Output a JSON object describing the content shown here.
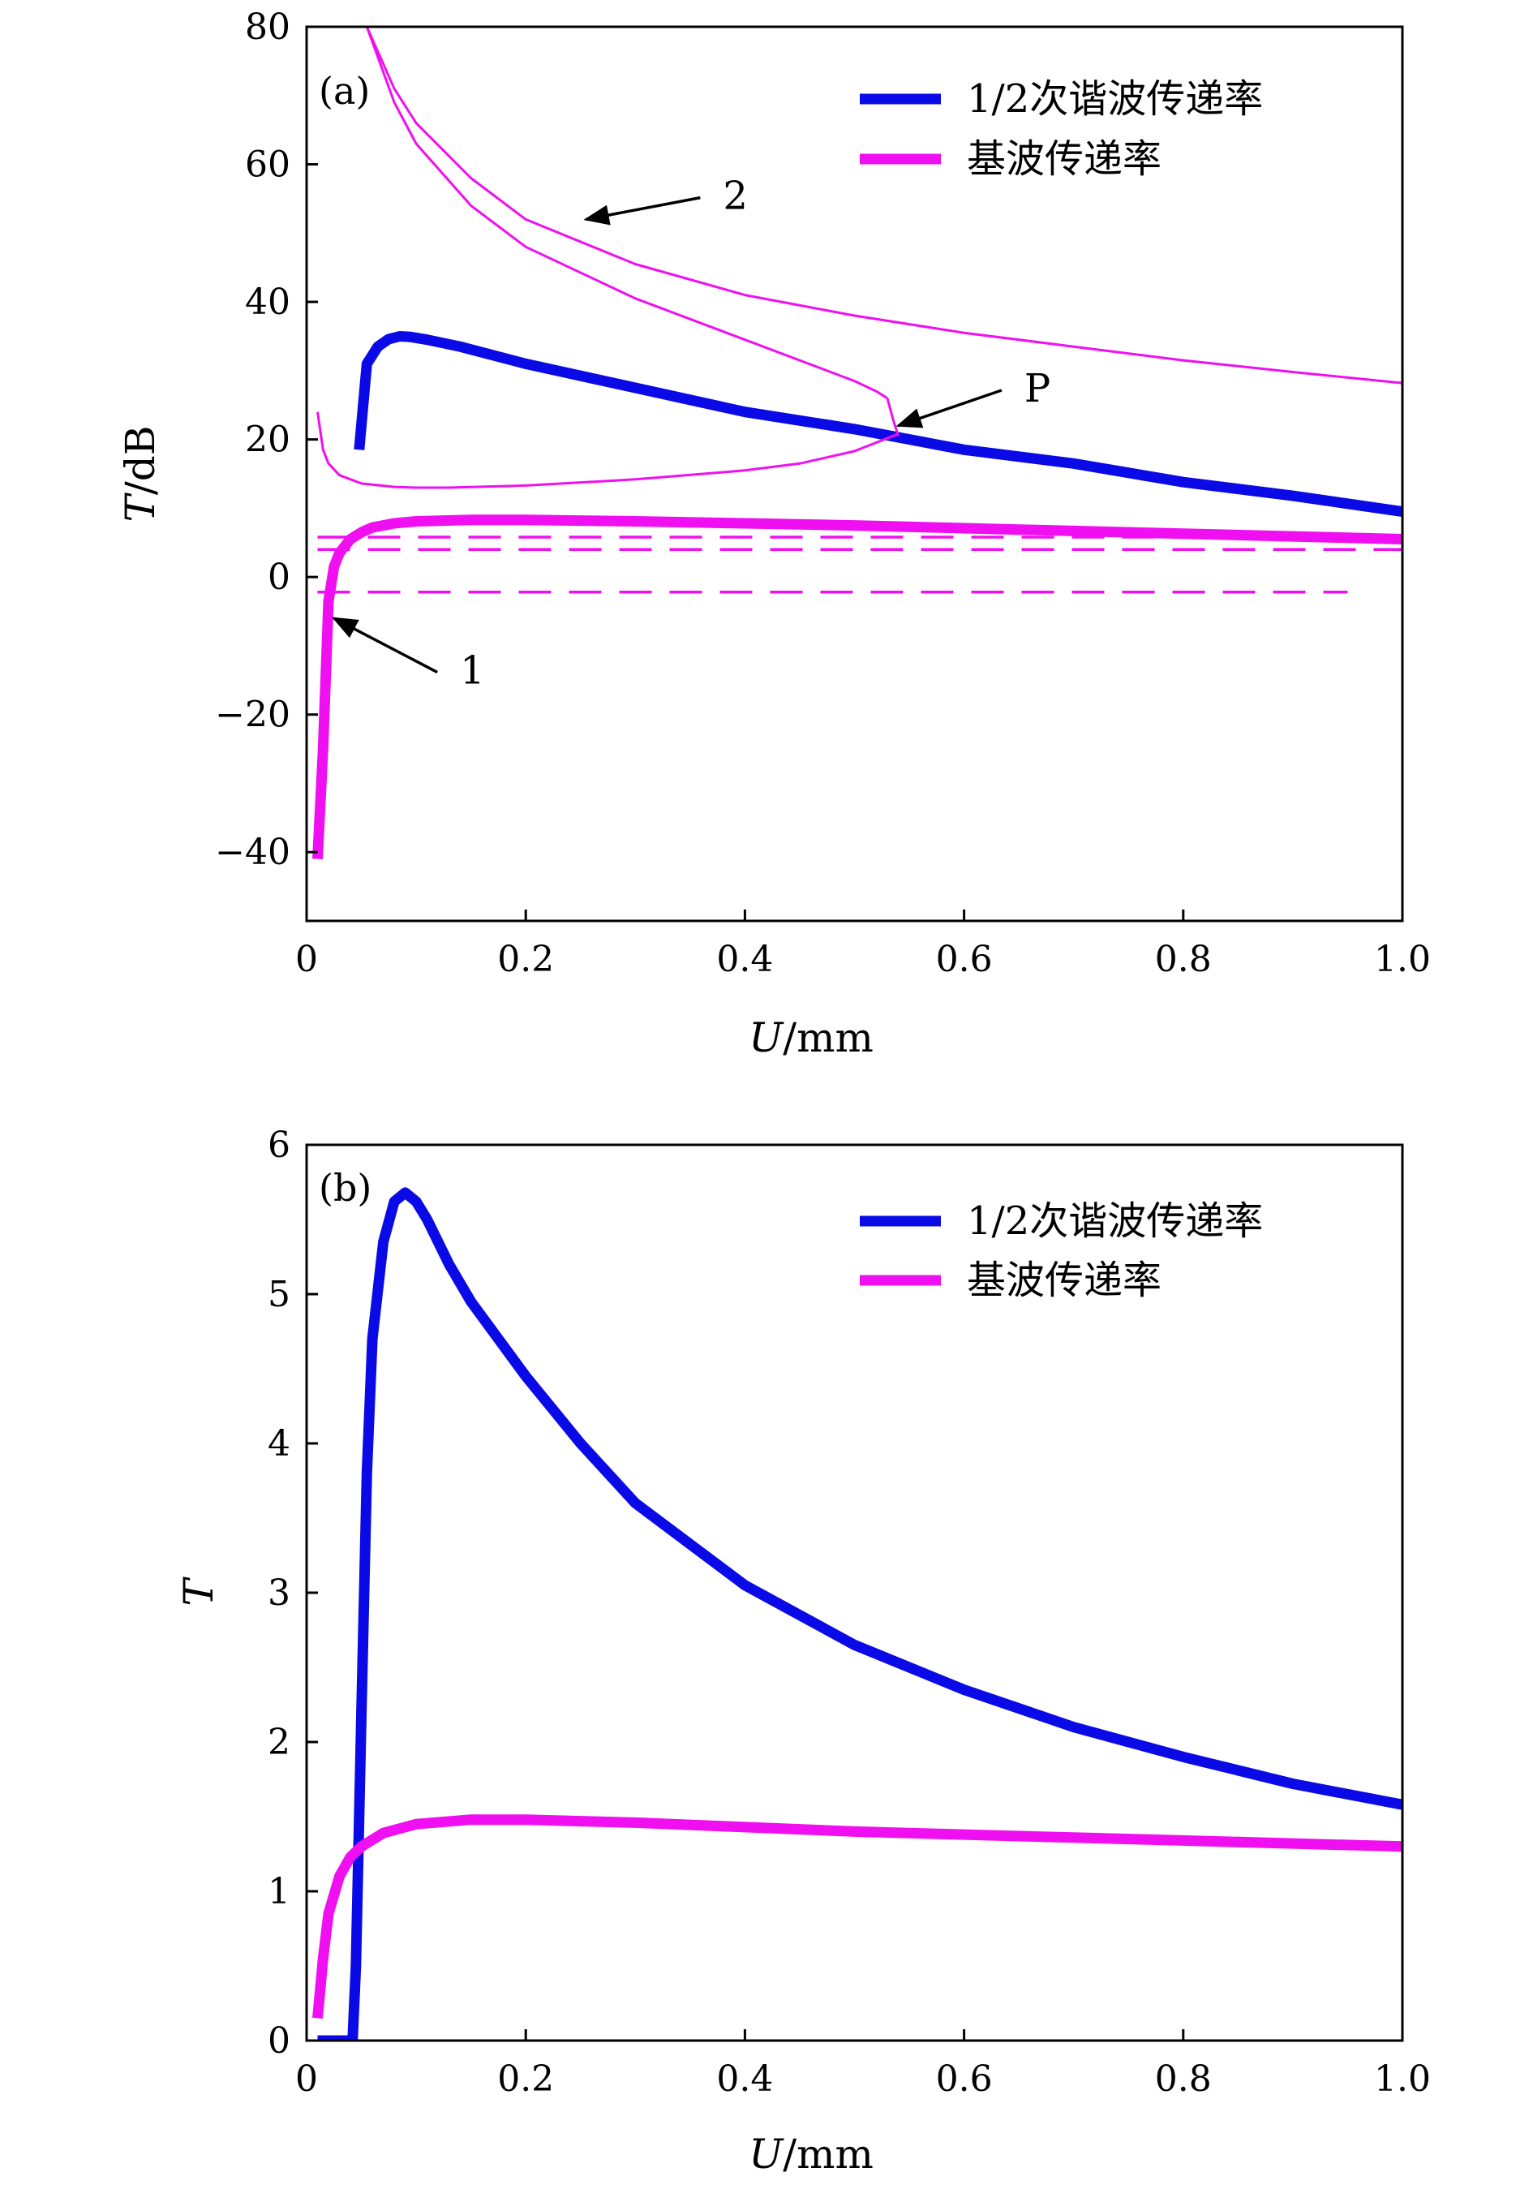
{
  "chart_data": [
    {
      "type": "line",
      "panel_label": "(a)",
      "ylabel_italic": "T",
      "ylabel_unit": "/dB",
      "xlabel_italic": "U",
      "xlabel_unit": "/mm",
      "xlim": [
        0,
        1.0
      ],
      "ylim": [
        -50,
        80
      ],
      "xticks": [
        0,
        0.2,
        0.4,
        0.6,
        0.8,
        1.0
      ],
      "xtick_labels": [
        "0",
        "0.2",
        "0.4",
        "0.6",
        "0.8",
        "1.0"
      ],
      "yticks": [
        -40,
        -20,
        0,
        20,
        40,
        60,
        80
      ],
      "ytick_labels": [
        "−40",
        "−20",
        "0",
        "20",
        "40",
        "60",
        "80"
      ],
      "grid": false,
      "legend_position": "top-right",
      "legend": [
        {
          "label": "1/2次谐波传递率",
          "color": "#0a0ae6"
        },
        {
          "label": "基波传递率",
          "color": "#f00ff0"
        }
      ],
      "series": [
        {
          "name": "1/2次谐波传递率",
          "color": "#0a0ae6",
          "style": "thick",
          "x": [
            0.048,
            0.055,
            0.065,
            0.075,
            0.085,
            0.095,
            0.11,
            0.14,
            0.2,
            0.3,
            0.4,
            0.5,
            0.6,
            0.7,
            0.8,
            0.9,
            1.0
          ],
          "y": [
            18.5,
            31,
            33.5,
            34.6,
            35.0,
            34.9,
            34.5,
            33.5,
            31.0,
            27.5,
            24.0,
            21.5,
            18.5,
            16.5,
            13.8,
            11.8,
            9.5
          ]
        },
        {
          "name": "基波传递率",
          "color": "#f00ff0",
          "style": "thick",
          "x": [
            0.01,
            0.015,
            0.02,
            0.025,
            0.03,
            0.04,
            0.05,
            0.06,
            0.08,
            0.1,
            0.15,
            0.2,
            0.3,
            0.4,
            0.5,
            0.6,
            0.7,
            0.8,
            0.9,
            1.0
          ],
          "y": [
            -41,
            -25,
            -3.5,
            1.5,
            3.5,
            5.5,
            6.5,
            7.2,
            7.8,
            8.1,
            8.3,
            8.3,
            8.1,
            7.8,
            7.5,
            7.1,
            6.7,
            6.3,
            5.9,
            5.5
          ]
        },
        {
          "color": "#f00ff0",
          "style": "thin",
          "x": [
            0.055,
            0.08,
            0.1,
            0.15,
            0.2,
            0.3,
            0.4,
            0.5,
            0.6,
            0.7,
            0.8,
            0.9,
            1.0
          ],
          "y": [
            80,
            71,
            66,
            58,
            52,
            45.5,
            41,
            38,
            35.5,
            33.5,
            31.5,
            29.8,
            28.2
          ]
        },
        {
          "color": "#f00ff0",
          "style": "thin",
          "x": [
            0.055,
            0.08,
            0.1,
            0.15,
            0.2,
            0.3,
            0.4,
            0.45,
            0.5,
            0.52,
            0.53
          ],
          "y": [
            80,
            69,
            63,
            54,
            48,
            40.5,
            34.5,
            31.5,
            28.5,
            27.0,
            26.0
          ]
        },
        {
          "color": "#f00ff0",
          "style": "thin",
          "x": [
            0.53,
            0.535,
            0.54
          ],
          "y": [
            26.0,
            23.0,
            20.5
          ]
        },
        {
          "color": "#f00ff0",
          "style": "thin",
          "x": [
            0.01,
            0.015,
            0.02,
            0.03,
            0.05,
            0.08,
            0.1,
            0.13,
            0.2,
            0.3,
            0.4,
            0.45,
            0.5,
            0.54
          ],
          "y": [
            24,
            18.5,
            16.5,
            14.8,
            13.6,
            13.1,
            13.0,
            13.0,
            13.3,
            14.2,
            15.5,
            16.5,
            18.3,
            20.8
          ]
        },
        {
          "color": "#f00ff0",
          "style": "dashed",
          "x": [
            0.01,
            1.0
          ],
          "y": [
            5.8,
            5.8
          ]
        },
        {
          "color": "#f00ff0",
          "style": "dashed",
          "x": [
            0.01,
            1.0
          ],
          "y": [
            4.0,
            4.0
          ]
        },
        {
          "color": "#f00ff0",
          "style": "dashed",
          "x": [
            0.01,
            0.95
          ],
          "y": [
            -2.2,
            -2.2
          ]
        }
      ],
      "annotations": [
        {
          "text": "2",
          "text_at": [
            0.38,
            53.5
          ],
          "arrow_to": [
            0.255,
            52
          ]
        },
        {
          "text": "P",
          "text_at": [
            0.655,
            25.5
          ],
          "arrow_to": [
            0.54,
            22
          ]
        },
        {
          "text": "1",
          "text_at": [
            0.14,
            -15.5
          ],
          "arrow_to": [
            0.025,
            -6
          ]
        }
      ]
    },
    {
      "type": "line",
      "panel_label": "(b)",
      "ylabel_italic": "T",
      "ylabel_unit": "",
      "xlabel_italic": "U",
      "xlabel_unit": "/mm",
      "xlim": [
        0,
        1.0
      ],
      "ylim": [
        0,
        6
      ],
      "xticks": [
        0,
        0.2,
        0.4,
        0.6,
        0.8,
        1.0
      ],
      "xtick_labels": [
        "0",
        "0.2",
        "0.4",
        "0.6",
        "0.8",
        "1.0"
      ],
      "yticks": [
        0,
        1,
        2,
        3,
        4,
        5,
        6
      ],
      "ytick_labels": [
        "0",
        "1",
        "2",
        "3",
        "4",
        "5",
        "6"
      ],
      "grid": false,
      "legend_position": "top-right",
      "legend": [
        {
          "label": "1/2次谐波传递率",
          "color": "#0a0ae6"
        },
        {
          "label": "基波传递率",
          "color": "#f00ff0"
        }
      ],
      "series": [
        {
          "name": "1/2次谐波传递率",
          "color": "#0a0ae6",
          "style": "thick",
          "x": [
            0.01,
            0.03,
            0.042,
            0.045,
            0.05,
            0.055,
            0.06,
            0.07,
            0.08,
            0.09,
            0.1,
            0.11,
            0.13,
            0.15,
            0.2,
            0.25,
            0.3,
            0.4,
            0.5,
            0.6,
            0.7,
            0.8,
            0.9,
            1.0
          ],
          "y": [
            0,
            0,
            0,
            0.5,
            2.2,
            3.8,
            4.7,
            5.35,
            5.62,
            5.68,
            5.62,
            5.5,
            5.2,
            4.95,
            4.45,
            4.0,
            3.6,
            3.05,
            2.65,
            2.35,
            2.1,
            1.9,
            1.72,
            1.58
          ]
        },
        {
          "name": "基波传递率",
          "color": "#f00ff0",
          "style": "thick",
          "x": [
            0.01,
            0.015,
            0.02,
            0.03,
            0.04,
            0.05,
            0.07,
            0.1,
            0.15,
            0.2,
            0.3,
            0.4,
            0.5,
            0.6,
            0.7,
            0.8,
            0.9,
            1.0
          ],
          "y": [
            0.15,
            0.55,
            0.85,
            1.1,
            1.23,
            1.3,
            1.39,
            1.45,
            1.48,
            1.48,
            1.46,
            1.43,
            1.4,
            1.38,
            1.36,
            1.34,
            1.32,
            1.3
          ]
        }
      ],
      "annotations": []
    }
  ]
}
